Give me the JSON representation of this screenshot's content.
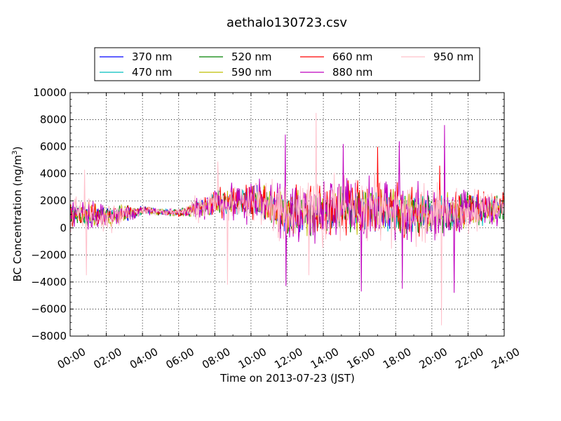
{
  "chart_data": {
    "type": "line",
    "title": "aethalo130723.csv",
    "xlabel": "Time on 2013-07-23 (JST)",
    "ylabel_main": "BC Concentration (ng/m",
    "ylabel_sup": "3",
    "ylabel_close": ")",
    "xlim": [
      0,
      24
    ],
    "ylim": [
      -8000,
      10000
    ],
    "grid": true,
    "legend_placement": "top-center",
    "x_tick_labels": [
      "00:00",
      "02:00",
      "04:00",
      "06:00",
      "08:00",
      "10:00",
      "12:00",
      "14:00",
      "16:00",
      "18:00",
      "20:00",
      "22:00",
      "24:00"
    ],
    "y_tick_labels": [
      "−8000",
      "−6000",
      "−4000",
      "−2000",
      "0",
      "2000",
      "4000",
      "6000",
      "8000",
      "10000"
    ],
    "y_tick_values": [
      -8000,
      -6000,
      -4000,
      -2000,
      0,
      2000,
      4000,
      6000,
      8000,
      10000
    ],
    "series": [
      {
        "name": "370 nm",
        "color": "#0000ff",
        "anchors": [
          [
            0,
            900
          ],
          [
            1,
            1000
          ],
          [
            2,
            900
          ],
          [
            3,
            1000
          ],
          [
            4,
            1300
          ],
          [
            5,
            1200
          ],
          [
            6,
            1100
          ],
          [
            7,
            1400
          ],
          [
            8,
            1900
          ],
          [
            9,
            1900
          ],
          [
            10,
            2000
          ],
          [
            11,
            1600
          ],
          [
            12,
            1100
          ],
          [
            13,
            1200
          ],
          [
            14,
            1100
          ],
          [
            15,
            1400
          ],
          [
            16,
            1500
          ],
          [
            17,
            1300
          ],
          [
            18,
            1300
          ],
          [
            19,
            1100
          ],
          [
            20,
            1000
          ],
          [
            21,
            1000
          ],
          [
            22,
            1300
          ],
          [
            23,
            1400
          ],
          [
            24,
            1500
          ]
        ],
        "spread": [
          [
            0,
            800
          ],
          [
            2,
            700
          ],
          [
            3,
            600
          ],
          [
            4,
            350
          ],
          [
            6,
            250
          ],
          [
            7,
            700
          ],
          [
            8,
            900
          ],
          [
            9,
            1000
          ],
          [
            12,
            1500
          ],
          [
            18,
            1700
          ],
          [
            22,
            1300
          ],
          [
            24,
            1000
          ]
        ]
      },
      {
        "name": "470 nm",
        "color": "#00bfbf",
        "anchors": [
          [
            0,
            900
          ],
          [
            1,
            1000
          ],
          [
            2,
            900
          ],
          [
            3,
            1000
          ],
          [
            4,
            1300
          ],
          [
            5,
            1200
          ],
          [
            6,
            1100
          ],
          [
            7,
            1400
          ],
          [
            8,
            1900
          ],
          [
            9,
            1900
          ],
          [
            10,
            2000
          ],
          [
            11,
            1600
          ],
          [
            12,
            1100
          ],
          [
            13,
            1200
          ],
          [
            14,
            1100
          ],
          [
            15,
            1400
          ],
          [
            16,
            1500
          ],
          [
            17,
            1300
          ],
          [
            18,
            1300
          ],
          [
            19,
            1100
          ],
          [
            20,
            1000
          ],
          [
            21,
            1000
          ],
          [
            22,
            1300
          ],
          [
            23,
            1400
          ],
          [
            24,
            1500
          ]
        ],
        "spread": [
          [
            0,
            900
          ],
          [
            2,
            800
          ],
          [
            3,
            650
          ],
          [
            4,
            380
          ],
          [
            6,
            270
          ],
          [
            7,
            750
          ],
          [
            8,
            950
          ],
          [
            9,
            1100
          ],
          [
            12,
            1600
          ],
          [
            18,
            1800
          ],
          [
            22,
            1400
          ],
          [
            24,
            1100
          ]
        ]
      },
      {
        "name": "520 nm",
        "color": "#008000",
        "anchors": [
          [
            0,
            900
          ],
          [
            1,
            1000
          ],
          [
            2,
            900
          ],
          [
            3,
            1000
          ],
          [
            4,
            1300
          ],
          [
            5,
            1200
          ],
          [
            6,
            1100
          ],
          [
            7,
            1400
          ],
          [
            8,
            1900
          ],
          [
            9,
            1900
          ],
          [
            10,
            2000
          ],
          [
            11,
            1600
          ],
          [
            12,
            1100
          ],
          [
            13,
            1200
          ],
          [
            14,
            1100
          ],
          [
            15,
            1400
          ],
          [
            16,
            1500
          ],
          [
            17,
            1300
          ],
          [
            18,
            1300
          ],
          [
            19,
            1100
          ],
          [
            20,
            1000
          ],
          [
            21,
            1000
          ],
          [
            22,
            1300
          ],
          [
            23,
            1400
          ],
          [
            24,
            1500
          ]
        ],
        "spread": [
          [
            0,
            1000
          ],
          [
            2,
            900
          ],
          [
            3,
            700
          ],
          [
            4,
            400
          ],
          [
            6,
            280
          ],
          [
            7,
            800
          ],
          [
            8,
            1000
          ],
          [
            9,
            1200
          ],
          [
            12,
            1800
          ],
          [
            18,
            2000
          ],
          [
            22,
            1500
          ],
          [
            24,
            1200
          ]
        ]
      },
      {
        "name": "590 nm",
        "color": "#bfbf00",
        "anchors": [
          [
            0,
            900
          ],
          [
            1,
            1000
          ],
          [
            2,
            900
          ],
          [
            3,
            1000
          ],
          [
            4,
            1300
          ],
          [
            5,
            1200
          ],
          [
            6,
            1100
          ],
          [
            7,
            1400
          ],
          [
            8,
            1900
          ],
          [
            9,
            1900
          ],
          [
            10,
            2000
          ],
          [
            11,
            1600
          ],
          [
            12,
            1100
          ],
          [
            13,
            1200
          ],
          [
            14,
            1100
          ],
          [
            15,
            1400
          ],
          [
            16,
            1500
          ],
          [
            17,
            1300
          ],
          [
            18,
            1300
          ],
          [
            19,
            1100
          ],
          [
            20,
            1000
          ],
          [
            21,
            1000
          ],
          [
            22,
            1300
          ],
          [
            23,
            1400
          ],
          [
            24,
            1500
          ]
        ],
        "spread": [
          [
            0,
            1100
          ],
          [
            2,
            1000
          ],
          [
            3,
            750
          ],
          [
            4,
            420
          ],
          [
            6,
            290
          ],
          [
            7,
            850
          ],
          [
            8,
            1100
          ],
          [
            9,
            1300
          ],
          [
            12,
            2000
          ],
          [
            18,
            2200
          ],
          [
            22,
            1600
          ],
          [
            24,
            1300
          ]
        ]
      },
      {
        "name": "660 nm",
        "color": "#ff0000",
        "anchors": [
          [
            0,
            900
          ],
          [
            1,
            1000
          ],
          [
            2,
            900
          ],
          [
            3,
            1000
          ],
          [
            4,
            1300
          ],
          [
            5,
            1200
          ],
          [
            6,
            1100
          ],
          [
            7,
            1400
          ],
          [
            8,
            1900
          ],
          [
            9,
            1900
          ],
          [
            10,
            2000
          ],
          [
            11,
            1600
          ],
          [
            12,
            1100
          ],
          [
            13,
            1200
          ],
          [
            14,
            1100
          ],
          [
            15,
            1400
          ],
          [
            16,
            1500
          ],
          [
            17,
            1300
          ],
          [
            18,
            1300
          ],
          [
            19,
            1100
          ],
          [
            20,
            1000
          ],
          [
            21,
            1000
          ],
          [
            22,
            1300
          ],
          [
            23,
            1400
          ],
          [
            24,
            1500
          ]
        ],
        "spread": [
          [
            0,
            1200
          ],
          [
            2,
            1100
          ],
          [
            3,
            800
          ],
          [
            4,
            440
          ],
          [
            6,
            300
          ],
          [
            7,
            900
          ],
          [
            8,
            1150
          ],
          [
            9,
            1400
          ],
          [
            12,
            2200
          ],
          [
            18,
            2400
          ],
          [
            22,
            1700
          ],
          [
            24,
            1400
          ]
        ]
      },
      {
        "name": "880 nm",
        "color": "#bf00bf",
        "anchors": [
          [
            0,
            900
          ],
          [
            1,
            1000
          ],
          [
            2,
            900
          ],
          [
            3,
            1000
          ],
          [
            4,
            1300
          ],
          [
            5,
            1200
          ],
          [
            6,
            1100
          ],
          [
            7,
            1400
          ],
          [
            8,
            1900
          ],
          [
            9,
            1900
          ],
          [
            10,
            2000
          ],
          [
            11,
            1600
          ],
          [
            12,
            1100
          ],
          [
            13,
            1200
          ],
          [
            14,
            1100
          ],
          [
            15,
            1400
          ],
          [
            16,
            1500
          ],
          [
            17,
            1300
          ],
          [
            18,
            1300
          ],
          [
            19,
            1100
          ],
          [
            20,
            1000
          ],
          [
            21,
            1000
          ],
          [
            22,
            1300
          ],
          [
            23,
            1400
          ],
          [
            24,
            1500
          ]
        ],
        "spread": [
          [
            0,
            1400
          ],
          [
            2,
            1300
          ],
          [
            3,
            900
          ],
          [
            4,
            460
          ],
          [
            6,
            320
          ],
          [
            7,
            1000
          ],
          [
            8,
            1300
          ],
          [
            9,
            1700
          ],
          [
            12,
            2700
          ],
          [
            18,
            2900
          ],
          [
            22,
            2000
          ],
          [
            24,
            1600
          ]
        ]
      },
      {
        "name": "950 nm",
        "color": "#ffc0cb",
        "anchors": [
          [
            0,
            900
          ],
          [
            1,
            1000
          ],
          [
            2,
            900
          ],
          [
            3,
            1000
          ],
          [
            4,
            1300
          ],
          [
            5,
            1200
          ],
          [
            6,
            1100
          ],
          [
            7,
            1400
          ],
          [
            8,
            1900
          ],
          [
            9,
            1900
          ],
          [
            10,
            2000
          ],
          [
            11,
            1600
          ],
          [
            12,
            1100
          ],
          [
            13,
            1200
          ],
          [
            14,
            1100
          ],
          [
            15,
            1400
          ],
          [
            16,
            1500
          ],
          [
            17,
            1300
          ],
          [
            18,
            1300
          ],
          [
            19,
            1100
          ],
          [
            20,
            1000
          ],
          [
            21,
            1000
          ],
          [
            22,
            1300
          ],
          [
            23,
            1400
          ],
          [
            24,
            1500
          ]
        ],
        "spread": [
          [
            0,
            1600
          ],
          [
            2,
            1500
          ],
          [
            3,
            950
          ],
          [
            4,
            480
          ],
          [
            6,
            340
          ],
          [
            7,
            1100
          ],
          [
            8,
            1500
          ],
          [
            9,
            2000
          ],
          [
            12,
            3000
          ],
          [
            18,
            3100
          ],
          [
            22,
            2200
          ],
          [
            24,
            1800
          ]
        ]
      }
    ],
    "peaks": [
      {
        "series": "950 nm",
        "x": 0.8,
        "y": 4300
      },
      {
        "series": "950 nm",
        "x": 0.9,
        "y": -3500
      },
      {
        "series": "950 nm",
        "x": 8.15,
        "y": 4900
      },
      {
        "series": "950 nm",
        "x": 8.7,
        "y": -4200
      },
      {
        "series": "880 nm",
        "x": 11.9,
        "y": 6900
      },
      {
        "series": "880 nm",
        "x": 11.95,
        "y": -4300
      },
      {
        "series": "950 nm",
        "x": 13.6,
        "y": 8500
      },
      {
        "series": "950 nm",
        "x": 13.2,
        "y": -3500
      },
      {
        "series": "880 nm",
        "x": 15.1,
        "y": 6200
      },
      {
        "series": "880 nm",
        "x": 16.1,
        "y": -4700
      },
      {
        "series": "660 nm",
        "x": 17.0,
        "y": 6000
      },
      {
        "series": "880 nm",
        "x": 18.2,
        "y": 6400
      },
      {
        "series": "880 nm",
        "x": 18.35,
        "y": -4500
      },
      {
        "series": "880 nm",
        "x": 20.7,
        "y": 7600
      },
      {
        "series": "950 nm",
        "x": 20.55,
        "y": -7200
      },
      {
        "series": "880 nm",
        "x": 21.25,
        "y": -4800
      },
      {
        "series": "660 nm",
        "x": 20.45,
        "y": 4600
      }
    ]
  }
}
